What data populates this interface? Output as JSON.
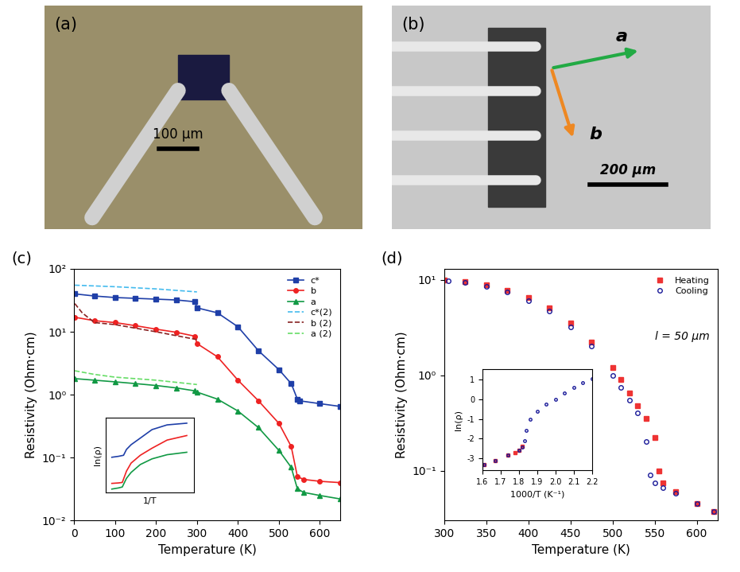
{
  "images": [
    {
      "panel": "(a)",
      "scale_bar": "100 μm"
    },
    {
      "panel": "(b)",
      "scale_bar": "200 μm",
      "arrows": [
        {
          "label": "a",
          "color": "#22aa44"
        },
        {
          "label": "b",
          "color": "#ee8822"
        }
      ]
    }
  ],
  "chart_data": [
    {
      "type": "line",
      "panel": "(c)",
      "x_label": "Temperature (K)",
      "y_label": "Resistivity (Ohm·cm)",
      "log": "y",
      "xlim": [
        0,
        650
      ],
      "xticks": [
        0,
        100,
        200,
        300,
        400,
        500,
        600
      ],
      "ylim": [
        0.01,
        100
      ],
      "yticks": [
        {
          "value": 0.01,
          "label": "10⁻²"
        },
        {
          "value": 0.1,
          "label": "10⁻¹"
        },
        {
          "value": 1,
          "label": "10⁰"
        },
        {
          "value": 10,
          "label": "10¹"
        },
        {
          "value": 100,
          "label": "10²"
        }
      ],
      "legend": "upper right",
      "series": [
        {
          "name": "c*",
          "color": "#1f3fa8",
          "marker": "square",
          "line_style": "solid",
          "x": [
            2,
            50,
            100,
            150,
            200,
            250,
            295,
            300,
            350,
            400,
            450,
            500,
            530,
            545,
            550,
            600,
            650
          ],
          "values": [
            40,
            37,
            35,
            34,
            33,
            32,
            30,
            24,
            20,
            12,
            5,
            2.5,
            1.5,
            0.85,
            0.8,
            0.72,
            0.65
          ]
        },
        {
          "name": "b",
          "color": "#ee2222",
          "marker": "circle",
          "line_style": "solid",
          "x": [
            2,
            50,
            100,
            150,
            200,
            250,
            295,
            300,
            350,
            400,
            450,
            500,
            530,
            545,
            560,
            600,
            650
          ],
          "values": [
            17,
            15,
            14,
            12.5,
            11,
            9.8,
            8.5,
            6.5,
            4,
            1.7,
            0.8,
            0.35,
            0.15,
            0.05,
            0.045,
            0.042,
            0.04
          ]
        },
        {
          "name": "a",
          "color": "#119944",
          "marker": "triangle",
          "line_style": "solid",
          "x": [
            2,
            50,
            100,
            150,
            200,
            250,
            295,
            300,
            350,
            400,
            450,
            500,
            530,
            545,
            560,
            600,
            650
          ],
          "values": [
            1.8,
            1.7,
            1.6,
            1.5,
            1.4,
            1.28,
            1.15,
            1.1,
            0.85,
            0.55,
            0.3,
            0.13,
            0.07,
            0.032,
            0.028,
            0.025,
            0.022
          ]
        },
        {
          "name": "c*(2)",
          "color": "#44bbee",
          "marker": "none",
          "line_style": "dashed",
          "x": [
            2,
            100,
            200,
            300
          ],
          "values": [
            55,
            52,
            48,
            43
          ]
        },
        {
          "name": "b (2)",
          "color": "#882222",
          "marker": "none",
          "line_style": "dashed",
          "x": [
            2,
            20,
            50,
            100,
            200,
            300
          ],
          "values": [
            28,
            20,
            14,
            13,
            10,
            7.5
          ]
        },
        {
          "name": "a (2)",
          "color": "#66dd66",
          "marker": "none",
          "line_style": "dashed",
          "x": [
            2,
            50,
            100,
            200,
            300
          ],
          "values": [
            2.4,
            2.1,
            1.9,
            1.7,
            1.45
          ]
        }
      ],
      "inset": {
        "type": "line",
        "x_label": "1/T",
        "y_label": "ln(ρ)",
        "tick_labels": false,
        "xlim": [
          0.0014,
          0.0035
        ],
        "ylim": [
          -4.2,
          3.8
        ],
        "xticks": [],
        "yticks": [],
        "series": [
          {
            "color": "#1f3fa8",
            "x": [
              0.00154,
              0.0017,
              0.00182,
              0.00189,
              0.002,
              0.00222,
              0.0025,
              0.00286,
              0.00333
            ],
            "values": [
              -0.43,
              -0.33,
              -0.22,
              0.4,
              0.9,
              1.6,
              2.5,
              3.0,
              3.18
            ]
          },
          {
            "color": "#ee2222",
            "x": [
              0.00154,
              0.0017,
              0.00179,
              0.00189,
              0.002,
              0.00222,
              0.0025,
              0.00286,
              0.00333
            ],
            "values": [
              -3.2,
              -3.15,
              -3.1,
              -1.9,
              -1.05,
              -0.22,
              0.53,
              1.39,
              1.87
            ]
          },
          {
            "color": "#119944",
            "x": [
              0.00154,
              0.0017,
              0.00179,
              0.00189,
              0.002,
              0.00222,
              0.0025,
              0.00286,
              0.00333
            ],
            "values": [
              -3.8,
              -3.68,
              -3.58,
              -2.66,
              -2.04,
              -1.2,
              -0.6,
              -0.16,
              0.1
            ]
          }
        ]
      }
    },
    {
      "type": "line",
      "panel": "(d)",
      "x_label": "Temperature (K)",
      "y_label": "Resistivity (Ohm·cm)",
      "log": "y",
      "xlim": [
        300,
        625
      ],
      "xticks": [
        300,
        350,
        400,
        450,
        500,
        550,
        600
      ],
      "ylim": [
        0.03,
        13
      ],
      "yticks": [
        {
          "value": 0.1,
          "label": "10⁻¹"
        },
        {
          "value": 1,
          "label": "10⁰"
        },
        {
          "value": 10,
          "label": "10¹"
        }
      ],
      "legend": "upper right",
      "annotation": "l = 50 μm",
      "series": [
        {
          "name": "Heating",
          "color": "#ee3333",
          "marker": "square",
          "line_style": "none",
          "x": [
            300,
            325,
            350,
            375,
            400,
            425,
            450,
            475,
            500,
            510,
            520,
            530,
            540,
            550,
            555,
            560,
            575,
            600,
            620
          ],
          "values": [
            10,
            9.5,
            8.8,
            7.8,
            6.5,
            5.1,
            3.5,
            2.2,
            1.2,
            0.9,
            0.65,
            0.48,
            0.35,
            0.22,
            0.1,
            0.075,
            0.06,
            0.045,
            0.037
          ]
        },
        {
          "name": "Cooling",
          "color": "#1a1a99",
          "marker": "circle_open",
          "line_style": "none",
          "x": [
            305,
            325,
            350,
            375,
            400,
            425,
            450,
            475,
            500,
            510,
            520,
            530,
            540,
            545,
            550,
            560,
            575,
            600,
            620
          ],
          "values": [
            9.8,
            9.3,
            8.5,
            7.4,
            6,
            4.7,
            3.2,
            2.0,
            1.0,
            0.75,
            0.55,
            0.4,
            0.2,
            0.09,
            0.075,
            0.066,
            0.058,
            0.045,
            0.037
          ]
        }
      ],
      "inset": {
        "type": "line",
        "x_label": "1000/T (K⁻¹)",
        "y_label": "ln(ρ)",
        "xlim": [
          1.6,
          2.2
        ],
        "ylim": [
          -3.6,
          1.5
        ],
        "xticks": [
          1.6,
          1.7,
          1.8,
          1.9,
          2.0,
          2.1,
          2.2
        ],
        "yticks": [
          -3,
          -2,
          -1,
          0,
          1
        ],
        "series": [
          {
            "name": "Heating",
            "color": "#ee3333",
            "marker": "square",
            "line_style": "none",
            "x": [
              1.61,
              1.67,
              1.74,
              1.78,
              1.8,
              1.82
            ],
            "values": [
              -3.3,
              -3.1,
              -2.83,
              -2.7,
              -2.6,
              -2.4
            ]
          },
          {
            "name": "Cooling",
            "color": "#1a1a99",
            "marker": "circle_open",
            "line_style": "none",
            "x": [
              1.61,
              1.67,
              1.74,
              1.8,
              1.82,
              1.83,
              1.84,
              1.86,
              1.9,
              1.95,
              2.0,
              2.05,
              2.1,
              2.15,
              2.2
            ],
            "values": [
              -3.3,
              -3.1,
              -2.83,
              -2.6,
              -2.45,
              -2.1,
              -1.6,
              -1.0,
              -0.6,
              -0.25,
              0.0,
              0.3,
              0.6,
              0.85,
              1.05
            ]
          }
        ]
      }
    }
  ]
}
